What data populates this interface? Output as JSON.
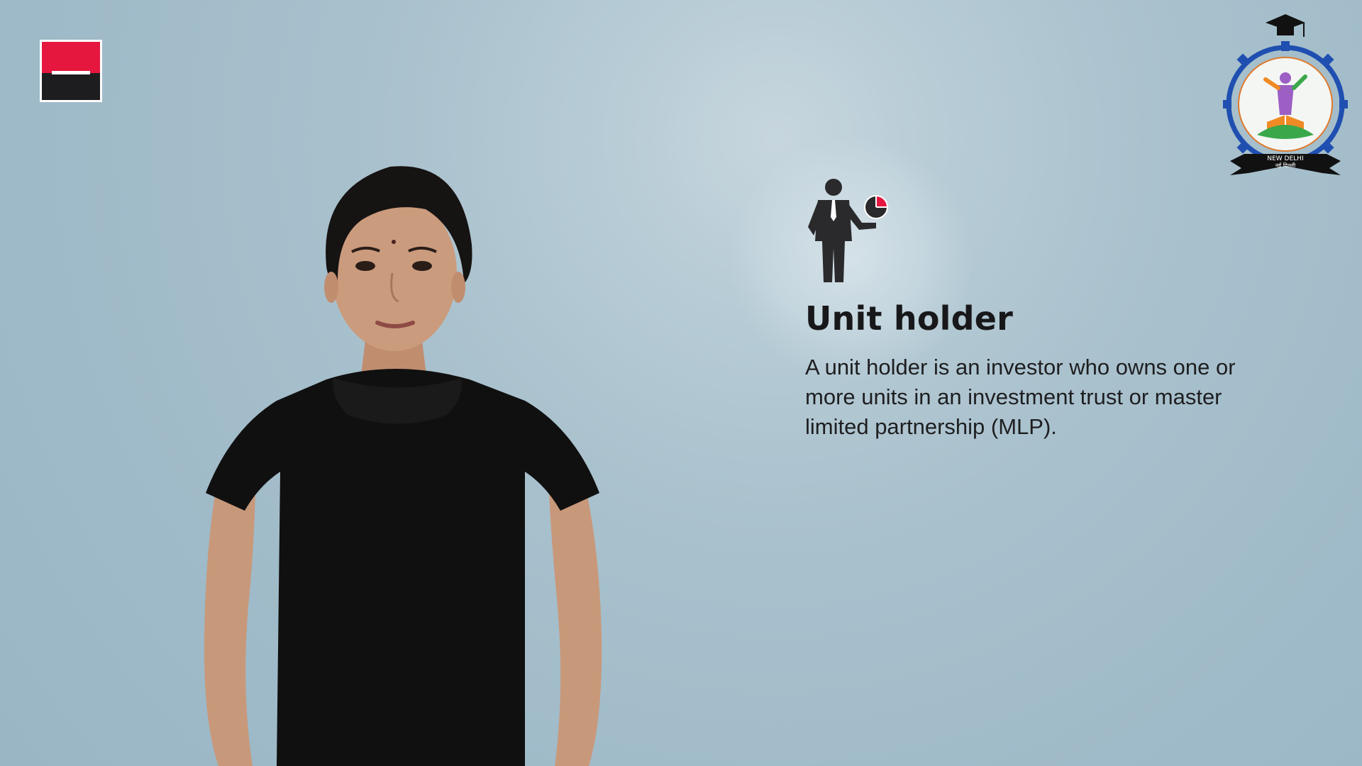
{
  "brand_logo": {
    "icon": "red-black-square-logo",
    "colors": {
      "red": "#e5173f",
      "black": "#1d1d1f",
      "white": "#ffffff"
    }
  },
  "emblem": {
    "icon": "institute-gear-emblem",
    "ribbon_text": "NEW DELHI",
    "ribbon_text_hindi": "नई दिल्ली"
  },
  "presenter": {
    "icon": "sign-language-presenter"
  },
  "info": {
    "icon": "investor-with-pie-chart-icon",
    "title": "Unit holder",
    "description": "A unit holder is an investor who owns one or more units in an investment trust or master limited partnership (MLP)."
  },
  "colors": {
    "background": "#a9c1cd",
    "accent": "#e5173f",
    "text": "#18181a"
  }
}
